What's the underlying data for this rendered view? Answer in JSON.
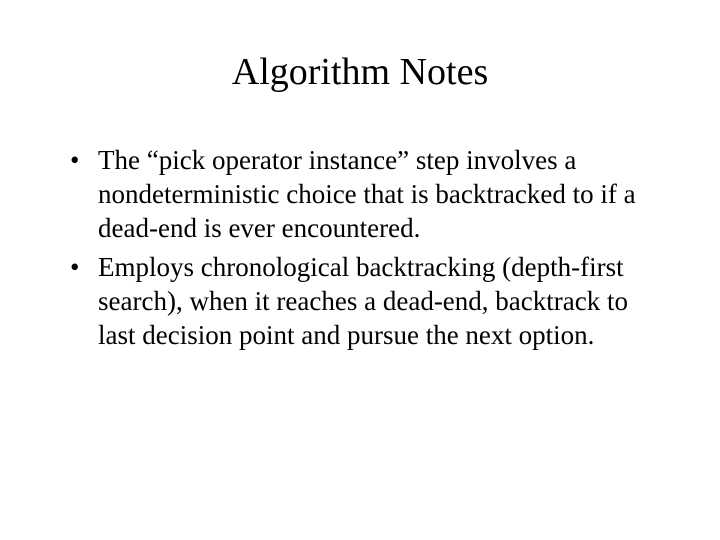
{
  "slide": {
    "title": "Algorithm Notes",
    "title_fontsize": 38,
    "bullets": [
      {
        "text": "The “pick operator instance” step involves a nondeterministic choice that is backtracked to if a dead-end is ever encountered."
      },
      {
        "text": "Employs chronological backtracking (depth-first search), when it reaches a dead-end, backtrack to last decision point and pursue the next option."
      }
    ],
    "body_fontsize": 27,
    "background_color": "#ffffff",
    "text_color": "#000000",
    "font_family": "Times New Roman"
  }
}
